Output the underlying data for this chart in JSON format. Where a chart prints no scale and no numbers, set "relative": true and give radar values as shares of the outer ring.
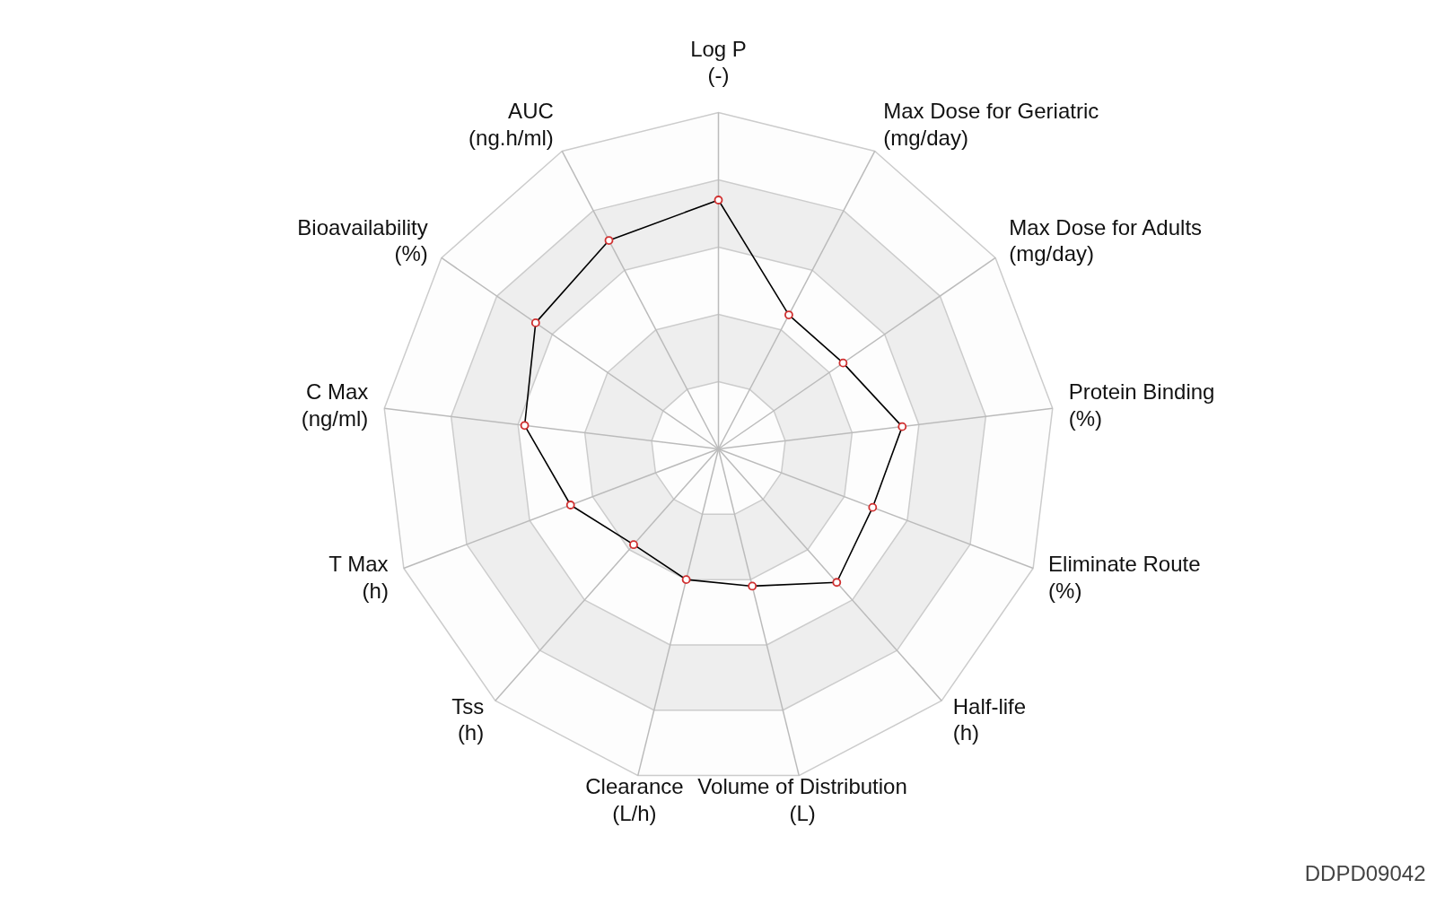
{
  "chart_data": {
    "type": "radar",
    "categories": [
      "Log P\n(-)",
      "Max Dose for Geriatric\n(mg/day)",
      "Max Dose for Adults\n(mg/day)",
      "Protein Binding\n(%)",
      "Eliminate Route\n(%)",
      "Half-life\n(h)",
      "Volume of Distribution\n(L)",
      "Clearance\n(L/h)",
      "Tss\n(h)",
      "T Max\n(h)",
      "C Max\n(ng/ml)",
      "Bioavailability\n(%)",
      "AUC\n(ng.h/ml)"
    ],
    "relative": true,
    "grid": true,
    "marker": "circle",
    "series": [
      {
        "color": "#000000",
        "values": [
          0.74,
          0.45,
          0.45,
          0.55,
          0.49,
          0.53,
          0.42,
          0.4,
          0.38,
          0.47,
          0.58,
          0.66,
          0.7
        ]
      }
    ],
    "annotations": [
      "DDPD09042"
    ]
  }
}
